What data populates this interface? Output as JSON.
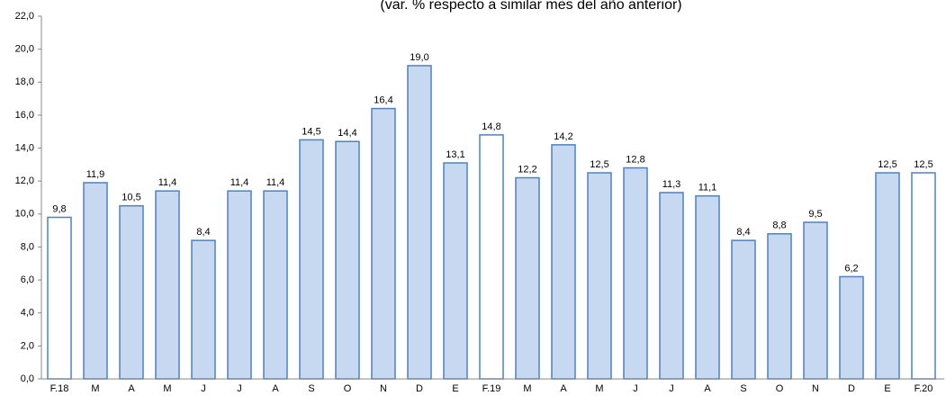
{
  "chart_data": {
    "type": "bar",
    "subtitle": "(var. % respecto a similar mes del año anterior)",
    "categories": [
      "F.18",
      "M",
      "A",
      "M",
      "J",
      "J",
      "A",
      "S",
      "O",
      "N",
      "D",
      "E",
      "F.19",
      "M",
      "A",
      "M",
      "J",
      "J",
      "A",
      "S",
      "O",
      "N",
      "D",
      "E",
      "F.20"
    ],
    "values": [
      9.8,
      11.9,
      10.5,
      11.4,
      8.4,
      11.4,
      11.4,
      14.5,
      14.4,
      16.4,
      19.0,
      13.1,
      14.8,
      12.2,
      14.2,
      12.5,
      12.8,
      11.3,
      11.1,
      8.4,
      8.8,
      9.5,
      6.2,
      12.5,
      12.5
    ],
    "value_labels": [
      "9,8",
      "11,9",
      "10,5",
      "11,4",
      "8,4",
      "11,4",
      "11,4",
      "14,5",
      "14,4",
      "16,4",
      "19,0",
      "13,1",
      "14,8",
      "12,2",
      "14,2",
      "12,5",
      "12,8",
      "11,3",
      "11,1",
      "8,4",
      "8,8",
      "9,5",
      "6,2",
      "12,5",
      "12,5"
    ],
    "colors": [
      "#ffffff",
      "#c6d9f1",
      "#c6d9f1",
      "#c6d9f1",
      "#c6d9f1",
      "#c6d9f1",
      "#c6d9f1",
      "#c6d9f1",
      "#c6d9f1",
      "#c6d9f1",
      "#c6d9f1",
      "#c6d9f1",
      "#ffffff",
      "#c6d9f1",
      "#c6d9f1",
      "#c6d9f1",
      "#c6d9f1",
      "#c6d9f1",
      "#c6d9f1",
      "#c6d9f1",
      "#c6d9f1",
      "#c6d9f1",
      "#c6d9f1",
      "#c6d9f1",
      "#ffffff"
    ],
    "edge_color": "#4f81bd",
    "ylim": [
      0,
      22
    ],
    "yticks": [
      {
        "value": 0,
        "label": "0,0"
      },
      {
        "value": 2,
        "label": "2,0"
      },
      {
        "value": 4,
        "label": "4,0"
      },
      {
        "value": 6,
        "label": "6,0"
      },
      {
        "value": 8,
        "label": "8,0"
      },
      {
        "value": 10,
        "label": "10,0"
      },
      {
        "value": 12,
        "label": "12,0"
      },
      {
        "value": 14,
        "label": "14,0"
      },
      {
        "value": 16,
        "label": "16,0"
      },
      {
        "value": 18,
        "label": "18,0"
      },
      {
        "value": 20,
        "label": "20,0"
      },
      {
        "value": 22,
        "label": "22,0"
      }
    ],
    "grid": false
  }
}
